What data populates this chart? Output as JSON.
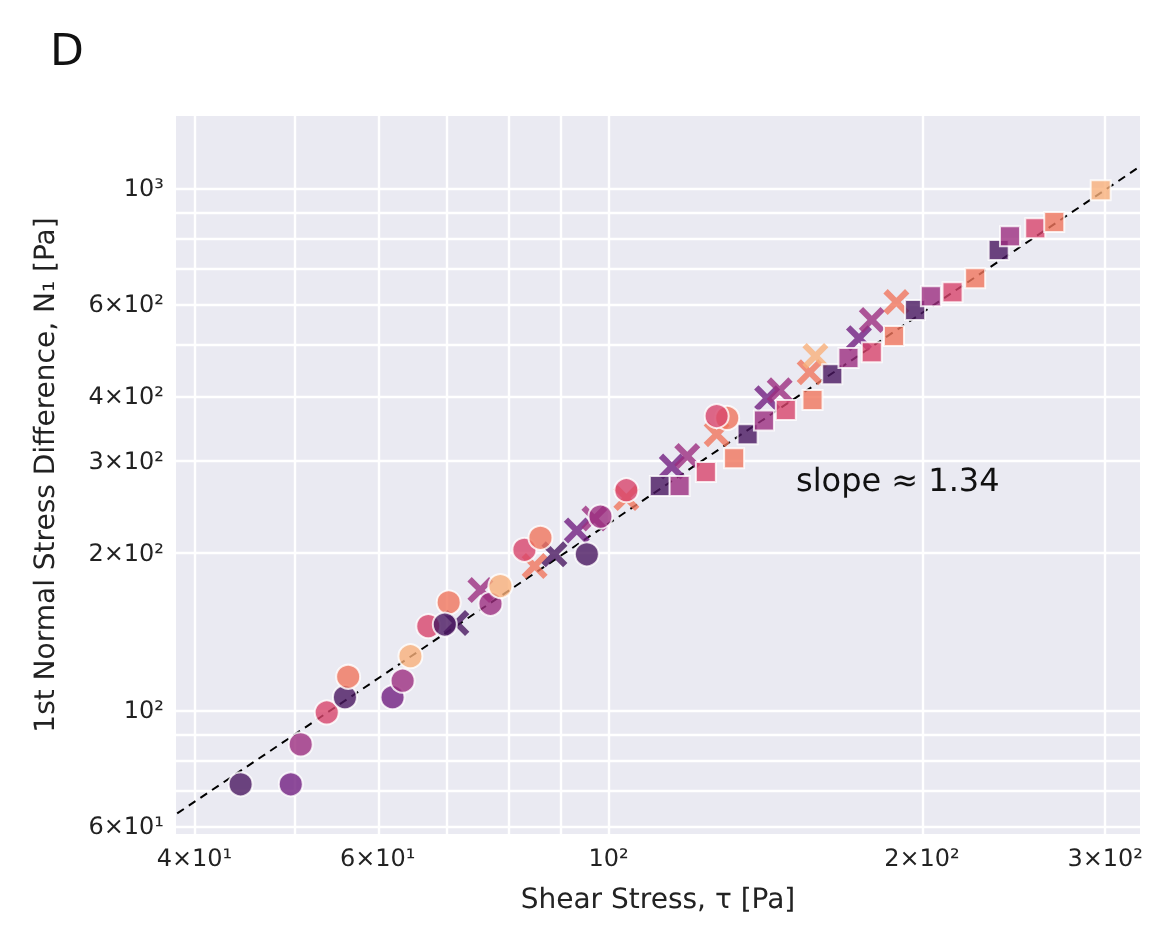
{
  "chart_data": {
    "type": "scatter",
    "title": "D",
    "xlabel": "Shear Stress, τ [Pa]",
    "ylabel": "1st Normal Stress Difference, N₁ [Pa]",
    "annotations": [
      "slope ≈ 1.34"
    ],
    "log": "xy",
    "grid": true,
    "xlim": [
      38.4,
      324
    ],
    "ylim": [
      58,
      1374
    ],
    "xticks": [
      {
        "value": 40,
        "label": "4×10¹"
      },
      {
        "value": 50,
        "label": null
      },
      {
        "value": 60,
        "label": "6×10¹"
      },
      {
        "value": 70,
        "label": null
      },
      {
        "value": 80,
        "label": null
      },
      {
        "value": 90,
        "label": null
      },
      {
        "value": 100,
        "label": "10²"
      },
      {
        "value": 200,
        "label": "2×10²"
      },
      {
        "value": 300,
        "label": "3×10²"
      }
    ],
    "yticks": [
      {
        "value": 60,
        "label": "6×10¹"
      },
      {
        "value": 70,
        "label": null
      },
      {
        "value": 80,
        "label": null
      },
      {
        "value": 90,
        "label": null
      },
      {
        "value": 100,
        "label": "10²"
      },
      {
        "value": 200,
        "label": "2×10²"
      },
      {
        "value": 300,
        "label": "3×10²"
      },
      {
        "value": 400,
        "label": "4×10²"
      },
      {
        "value": 500,
        "label": null
      },
      {
        "value": 600,
        "label": "6×10²"
      },
      {
        "value": 700,
        "label": null
      },
      {
        "value": 800,
        "label": null
      },
      {
        "value": 900,
        "label": null
      },
      {
        "value": 1000,
        "label": "10³"
      }
    ],
    "series": [
      {
        "type": "line",
        "marker": "none",
        "line_style": "dashed",
        "color": "#000000",
        "x": [
          38.5,
          324
        ],
        "values": [
          63.5,
          1100
        ]
      },
      {
        "type": "scatter",
        "marker": "circle",
        "x": [
          44.3,
          49.5,
          50.6,
          53.6,
          55.8,
          56.2,
          62.0,
          63.4,
          64.5,
          67.1,
          70.2,
          69.6,
          77.0,
          78.7,
          83.0,
          86.0,
          95.3,
          98.2,
          104,
          130,
          127
        ],
        "values": [
          72.2,
          72.2,
          86.1,
          99.1,
          106,
          116,
          106,
          114,
          127,
          145,
          161,
          146,
          160,
          173,
          203,
          214,
          199,
          235,
          264,
          363,
          366
        ],
        "colors": [
          "#4a1860",
          "#721f81",
          "#9c2e7f",
          "#d8456c",
          "#4a1860",
          "#f0755d",
          "#721f81",
          "#9c2e7f",
          "#f9b07b",
          "#d8456c",
          "#f0755d",
          "#4a1860",
          "#9c2e7f",
          "#f9b07b",
          "#d8456c",
          "#f0755d",
          "#4a1860",
          "#9c2e7f",
          "#d8456c",
          "#f0755d",
          "#d8456c"
        ]
      },
      {
        "type": "scatter",
        "marker": "cross",
        "x": [
          71.4,
          75.3,
          84.9,
          88.7,
          93.2,
          96.9,
          104,
          115,
          119,
          127,
          142,
          146,
          156,
          158,
          174,
          179,
          189
        ],
        "values": [
          147,
          170,
          189,
          199,
          221,
          233,
          255,
          293,
          307,
          338,
          396,
          410,
          444,
          477,
          516,
          559,
          605
        ],
        "colors": [
          "#4a1860",
          "#9c2e7f",
          "#f0755d",
          "#4a1860",
          "#721f81",
          "#9c2e7f",
          "#f0755d",
          "#721f81",
          "#9c2e7f",
          "#f0755d",
          "#721f81",
          "#9c2e7f",
          "#f0755d",
          "#f9b07b",
          "#721f81",
          "#9c2e7f",
          "#f0755d"
        ]
      },
      {
        "type": "scatter",
        "marker": "square",
        "x": [
          112,
          117,
          124,
          132,
          136,
          141,
          148,
          157,
          164,
          170,
          179,
          188,
          197,
          204,
          214,
          225,
          237,
          243,
          257,
          268,
          297
        ],
        "values": [
          269,
          269,
          286,
          304,
          338,
          359,
          376,
          393,
          440,
          473,
          485,
          521,
          584,
          621,
          632,
          672,
          761,
          809,
          838,
          861,
          991
        ],
        "colors": [
          "#4a1860",
          "#9c2e7f",
          "#d8456c",
          "#f0755d",
          "#4a1860",
          "#9c2e7f",
          "#d8456c",
          "#f0755d",
          "#4a1860",
          "#9c2e7f",
          "#d8456c",
          "#f0755d",
          "#4a1860",
          "#9c2e7f",
          "#d8456c",
          "#f0755d",
          "#4a1860",
          "#9c2e7f",
          "#d8456c",
          "#f0755d",
          "#f9b07b"
        ]
      }
    ]
  }
}
